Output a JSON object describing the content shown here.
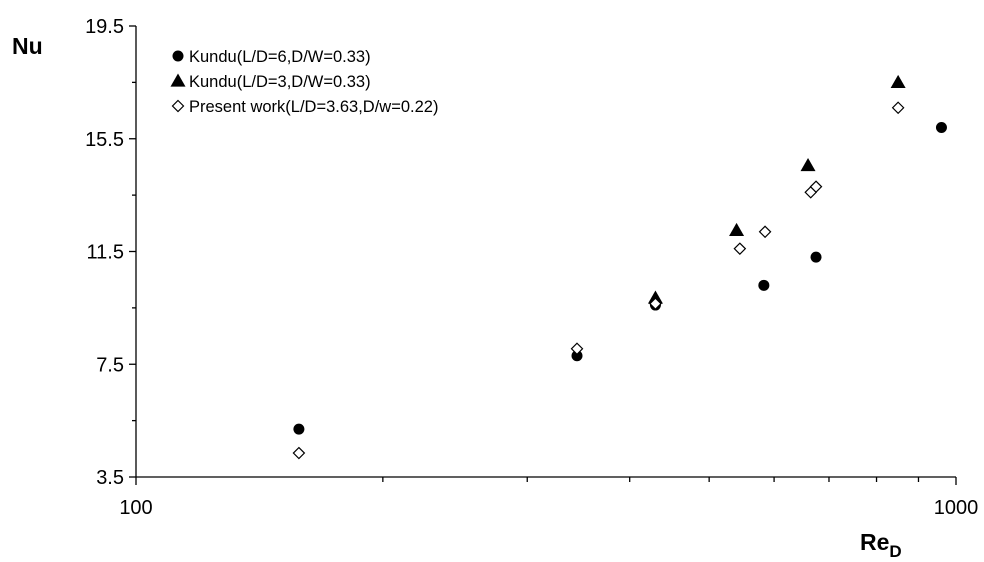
{
  "chart_data": {
    "type": "scatter",
    "title": "",
    "xlabel": "Re",
    "xlabel_subscript": "D",
    "ylabel": "Nu",
    "x_scale": "log",
    "xlim": [
      100,
      1000
    ],
    "ylim": [
      3.5,
      19.5
    ],
    "x_ticks": [
      "100",
      "1000"
    ],
    "y_ticks": [
      "3.5",
      "7.5",
      "11.5",
      "15.5",
      "19.5"
    ],
    "grid": false,
    "legend_position": "top-left",
    "series": [
      {
        "name": "Kundu(L/D=6,D/W=0.33)",
        "marker": "filled-circle",
        "color": "#000000",
        "points": [
          [
            158,
            5.2
          ],
          [
            345,
            7.8
          ],
          [
            430,
            9.6
          ],
          [
            583,
            10.3
          ],
          [
            675,
            11.3
          ],
          [
            960,
            15.9
          ]
        ]
      },
      {
        "name": "Kundu(L/D=3,D/W=0.33)",
        "marker": "filled-triangle",
        "color": "#000000",
        "points": [
          [
            430,
            9.85
          ],
          [
            540,
            12.25
          ],
          [
            660,
            14.55
          ],
          [
            850,
            17.5
          ]
        ]
      },
      {
        "name": "Present work(L/D=3.63,D/w=0.22)",
        "marker": "open-diamond",
        "color": "#000000",
        "points": [
          [
            158,
            4.35
          ],
          [
            345,
            8.05
          ],
          [
            430,
            9.65
          ],
          [
            545,
            11.6
          ],
          [
            585,
            12.2
          ],
          [
            665,
            13.6
          ],
          [
            675,
            13.8
          ],
          [
            850,
            16.6
          ]
        ]
      }
    ]
  }
}
